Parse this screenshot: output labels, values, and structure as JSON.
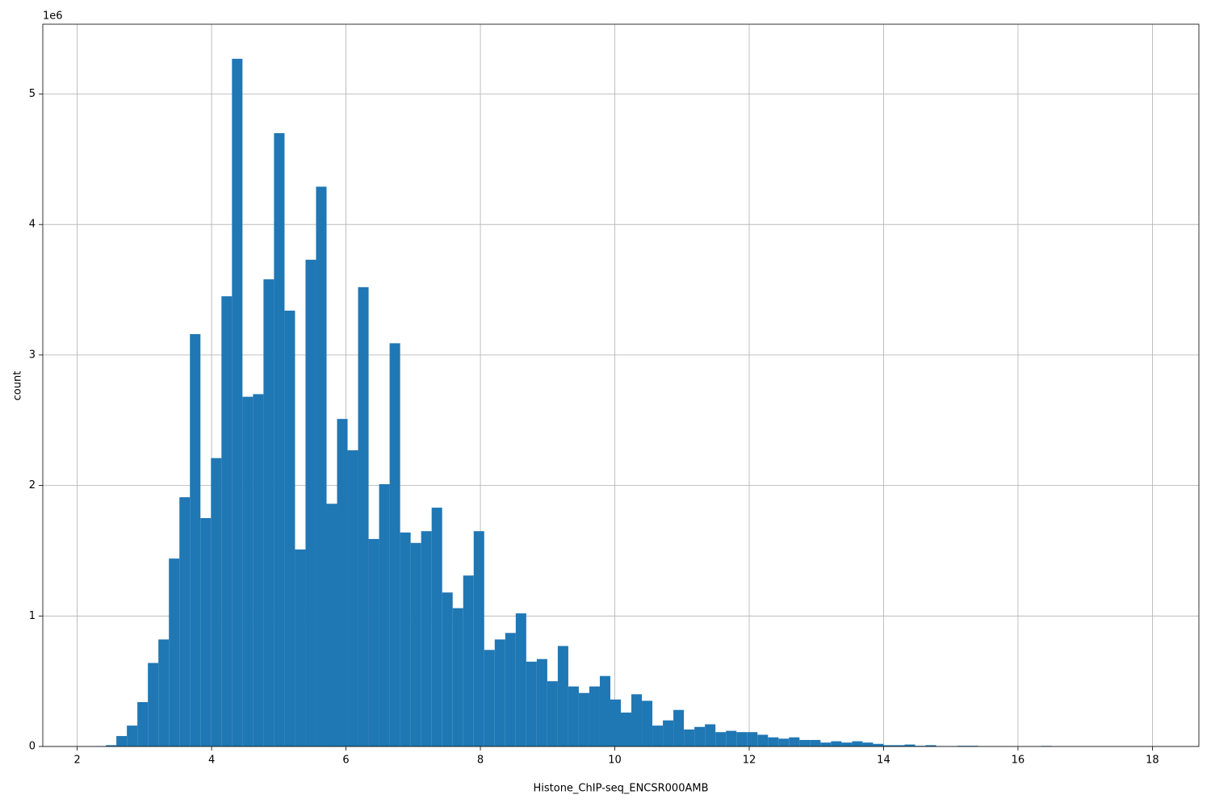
{
  "chart_data": {
    "type": "histogram",
    "xlabel": "Histone_ChIP-seq_ENCSR000AMB",
    "ylabel": "count",
    "y_offset_label": "1e6",
    "color": "#1f77b4",
    "grid": true,
    "xlim": [
      1.488,
      18.692
    ],
    "ylim": [
      0,
      5535000
    ],
    "xticks": [
      2,
      4,
      6,
      8,
      10,
      12,
      14,
      16,
      18
    ],
    "yticks": [
      0,
      {
        "value": 1000000,
        "label": "1"
      },
      {
        "value": 2000000,
        "label": "2"
      },
      {
        "value": 3000000,
        "label": "3"
      },
      {
        "value": 4000000,
        "label": "4"
      },
      {
        "value": 5000000,
        "label": "5"
      }
    ],
    "bins": [
      2.27,
      2.4264,
      2.5828,
      2.7392,
      2.8956,
      3.052,
      3.2084,
      3.3648,
      3.5212,
      3.6776,
      3.834,
      3.9904,
      4.1468,
      4.3032,
      4.4596,
      4.616,
      4.7724,
      4.9288,
      5.0852,
      5.2416,
      5.398,
      5.5544,
      5.7108,
      5.8672,
      6.0236,
      6.18,
      6.3364,
      6.4928,
      6.6492,
      6.8056,
      6.962,
      7.1184,
      7.2748,
      7.4312,
      7.5876,
      7.744,
      7.9004,
      8.0568,
      8.2132,
      8.3696,
      8.526,
      8.6824,
      8.8388,
      8.9952,
      9.1516,
      9.308,
      9.4644,
      9.6208,
      9.7772,
      9.9336,
      10.09,
      10.2464,
      10.4028,
      10.5592,
      10.7156,
      10.872,
      11.0284,
      11.1848,
      11.3412,
      11.4976,
      11.654,
      11.8104,
      11.9668,
      12.1232,
      12.2796,
      12.436,
      12.5924,
      12.7488,
      12.9052,
      13.0616,
      13.218,
      13.3744,
      13.5308,
      13.6872,
      13.8436,
      14.0,
      14.1564,
      14.3128,
      14.4692,
      14.6256,
      14.782,
      14.9384,
      15.0948,
      15.2512,
      15.4076,
      15.564,
      15.7204,
      15.8768,
      16.0332,
      16.1896,
      16.346,
      16.5024,
      16.6588,
      16.8152,
      16.9716,
      17.128,
      17.2844,
      17.4408,
      17.5972,
      17.7536,
      17.91
    ],
    "values": [
      2000,
      10000,
      80000,
      160000,
      340000,
      640000,
      820000,
      1440000,
      1910000,
      3160000,
      1750000,
      2210000,
      3450000,
      5270000,
      2680000,
      2700000,
      3580000,
      4700000,
      3340000,
      1510000,
      3730000,
      4290000,
      1860000,
      2510000,
      2270000,
      3520000,
      1590000,
      2010000,
      3090000,
      1640000,
      1560000,
      1650000,
      1830000,
      1180000,
      1060000,
      1310000,
      1650000,
      740000,
      820000,
      870000,
      1020000,
      650000,
      670000,
      500000,
      770000,
      460000,
      410000,
      460000,
      540000,
      360000,
      260000,
      400000,
      350000,
      160000,
      200000,
      280000,
      130000,
      150000,
      170000,
      110000,
      120000,
      110000,
      110000,
      90000,
      70000,
      60000,
      70000,
      50000,
      50000,
      30000,
      40000,
      30000,
      40000,
      30000,
      20000,
      10000,
      10000,
      15000,
      5000,
      10000,
      3000,
      2000,
      5000,
      5000,
      1000,
      1000,
      1000,
      500,
      500,
      500,
      4000,
      500,
      500,
      500,
      500,
      500,
      500,
      500,
      500,
      500
    ]
  }
}
